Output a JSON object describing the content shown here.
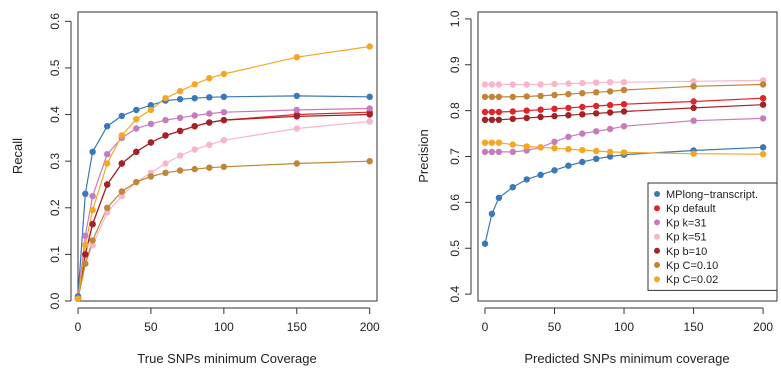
{
  "chart_data": [
    {
      "type": "line",
      "title": "",
      "xlabel": "True SNPs minimum Coverage",
      "ylabel": "Recall",
      "xlim": [
        0,
        205
      ],
      "ylim": [
        0,
        0.62
      ],
      "xticks": [
        0,
        50,
        100,
        150,
        200
      ],
      "xtick_labels": [
        "0",
        "50",
        "100",
        "150",
        "200"
      ],
      "yticks": [
        0.0,
        0.1,
        0.2,
        0.3,
        0.4,
        0.5,
        0.6
      ],
      "ytick_labels": [
        "0.0",
        "0.1",
        "0.2",
        "0.3",
        "0.4",
        "0.5",
        "0.6"
      ],
      "grid": false,
      "x": [
        0,
        5,
        10,
        20,
        30,
        40,
        50,
        60,
        70,
        80,
        90,
        100,
        150,
        200
      ],
      "series": [
        {
          "key": "mplong",
          "color": "#3a78b8",
          "values": [
            0.01,
            0.23,
            0.32,
            0.375,
            0.397,
            0.41,
            0.42,
            0.43,
            0.433,
            0.435,
            0.437,
            0.438,
            0.44,
            0.438
          ]
        },
        {
          "key": "kp_default",
          "color": "#e0242a",
          "values": [
            0.005,
            0.1,
            0.165,
            0.25,
            0.295,
            0.32,
            0.34,
            0.355,
            0.365,
            0.375,
            0.383,
            0.388,
            0.4,
            0.405
          ]
        },
        {
          "key": "kp_k31",
          "color": "#c77bbd",
          "values": [
            0.005,
            0.14,
            0.225,
            0.315,
            0.35,
            0.37,
            0.38,
            0.388,
            0.393,
            0.398,
            0.402,
            0.405,
            0.41,
            0.413
          ]
        },
        {
          "key": "kp_k51",
          "color": "#f7b6cc",
          "values": [
            0.005,
            0.08,
            0.12,
            0.19,
            0.225,
            0.255,
            0.275,
            0.295,
            0.312,
            0.325,
            0.335,
            0.345,
            0.37,
            0.385
          ]
        },
        {
          "key": "kp_b10",
          "color": "#a32226",
          "values": [
            0.005,
            0.1,
            0.165,
            0.25,
            0.295,
            0.32,
            0.34,
            0.355,
            0.365,
            0.375,
            0.383,
            0.388,
            0.396,
            0.4
          ]
        },
        {
          "key": "kp_c010",
          "color": "#c08535",
          "values": [
            0.005,
            0.08,
            0.13,
            0.2,
            0.235,
            0.255,
            0.267,
            0.275,
            0.28,
            0.283,
            0.286,
            0.288,
            0.295,
            0.3
          ]
        },
        {
          "key": "kp_c002",
          "color": "#f5a623",
          "values": [
            0.005,
            0.12,
            0.195,
            0.295,
            0.355,
            0.39,
            0.41,
            0.435,
            0.45,
            0.465,
            0.478,
            0.487,
            0.523,
            0.546
          ]
        }
      ]
    },
    {
      "type": "line",
      "title": "",
      "xlabel": "Predicted SNPs minimum coverage",
      "ylabel": "Precision",
      "xlim": [
        -5,
        210
      ],
      "ylim": [
        0.385,
        1.015
      ],
      "xticks": [
        0,
        50,
        100,
        150,
        200
      ],
      "xtick_labels": [
        "0",
        "50",
        "100",
        "150",
        "200"
      ],
      "yticks": [
        0.4,
        0.5,
        0.6,
        0.7,
        0.8,
        0.9,
        1.0
      ],
      "ytick_labels": [
        "0.4",
        "0.5",
        "0.6",
        "0.7",
        "0.8",
        "0.9",
        "1.0"
      ],
      "grid": false,
      "legend_position": "bottom-right",
      "x": [
        0,
        5,
        10,
        20,
        30,
        40,
        50,
        60,
        70,
        80,
        90,
        100,
        150,
        200
      ],
      "series": [
        {
          "key": "mplong",
          "name": "MPlong−transcript.",
          "color": "#3a78b8",
          "values": [
            0.51,
            0.575,
            0.61,
            0.633,
            0.65,
            0.66,
            0.67,
            0.68,
            0.688,
            0.695,
            0.7,
            0.704,
            0.713,
            0.72
          ]
        },
        {
          "key": "kp_default",
          "name": "Kp default",
          "color": "#e0242a",
          "values": [
            0.797,
            0.797,
            0.797,
            0.798,
            0.8,
            0.802,
            0.804,
            0.806,
            0.808,
            0.81,
            0.812,
            0.814,
            0.82,
            0.827
          ]
        },
        {
          "key": "kp_k31",
          "name": "Kp k=31",
          "color": "#c77bbd",
          "values": [
            0.71,
            0.71,
            0.71,
            0.71,
            0.713,
            0.72,
            0.732,
            0.743,
            0.75,
            0.755,
            0.76,
            0.766,
            0.778,
            0.783
          ]
        },
        {
          "key": "kp_k51",
          "name": "Kp k=51",
          "color": "#f7b6cc",
          "values": [
            0.857,
            0.857,
            0.857,
            0.857,
            0.857,
            0.857,
            0.858,
            0.859,
            0.86,
            0.861,
            0.862,
            0.862,
            0.864,
            0.866
          ]
        },
        {
          "key": "kp_b10",
          "name": "Kp b=10",
          "color": "#a32226",
          "values": [
            0.78,
            0.78,
            0.78,
            0.782,
            0.784,
            0.786,
            0.788,
            0.79,
            0.792,
            0.794,
            0.796,
            0.798,
            0.806,
            0.813
          ]
        },
        {
          "key": "kp_c010",
          "name": "Kp C=0.10",
          "color": "#c08535",
          "values": [
            0.83,
            0.83,
            0.83,
            0.83,
            0.831,
            0.832,
            0.834,
            0.836,
            0.838,
            0.84,
            0.842,
            0.845,
            0.853,
            0.857
          ]
        },
        {
          "key": "kp_c002",
          "name": "Kp C=0.02",
          "color": "#f5a623",
          "values": [
            0.73,
            0.73,
            0.73,
            0.726,
            0.722,
            0.72,
            0.718,
            0.716,
            0.714,
            0.712,
            0.71,
            0.709,
            0.706,
            0.705
          ]
        }
      ]
    }
  ]
}
